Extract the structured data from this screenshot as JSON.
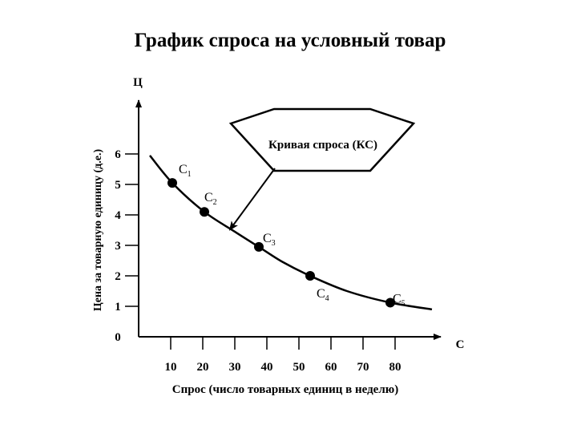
{
  "chart_data": {
    "type": "line",
    "title": "График спроса на условный товар",
    "ylabel": "Цена за товарную единицу (д.е.)",
    "xlabel": "Спрос (число товарных единиц в неделю)",
    "y_axis_name": "Ц",
    "x_axis_name": "С",
    "x_ticks": [
      "10",
      "20",
      "30",
      "40",
      "50",
      "60",
      "70",
      "80"
    ],
    "y_ticks": [
      "0",
      "1",
      "2",
      "3",
      "4",
      "5",
      "6"
    ],
    "xlim": [
      0,
      90
    ],
    "ylim": [
      0,
      6.8
    ],
    "points": [
      {
        "label": "С",
        "sub": "1",
        "x": 10.5,
        "y": 5.05
      },
      {
        "label": "С",
        "sub": "2",
        "x": 20.5,
        "y": 4.1
      },
      {
        "label": "С",
        "sub": "3",
        "x": 37.5,
        "y": 2.95
      },
      {
        "label": "С",
        "sub": "4",
        "x": 53.5,
        "y": 2.0
      },
      {
        "label": "С",
        "sub": "5",
        "x": 78.5,
        "y": 1.12
      }
    ],
    "curve": [
      [
        3.5,
        5.95
      ],
      [
        10.5,
        5.05
      ],
      [
        20.5,
        4.1
      ],
      [
        30.0,
        3.45
      ],
      [
        37.5,
        2.95
      ],
      [
        45.0,
        2.45
      ],
      [
        53.5,
        2.0
      ],
      [
        65.0,
        1.5
      ],
      [
        78.5,
        1.12
      ],
      [
        91.5,
        0.9
      ]
    ],
    "callout": {
      "text": "Кривая спроса (КС)",
      "points_to": [
        28.5,
        3.52
      ]
    },
    "grid": false,
    "legend": "none"
  }
}
